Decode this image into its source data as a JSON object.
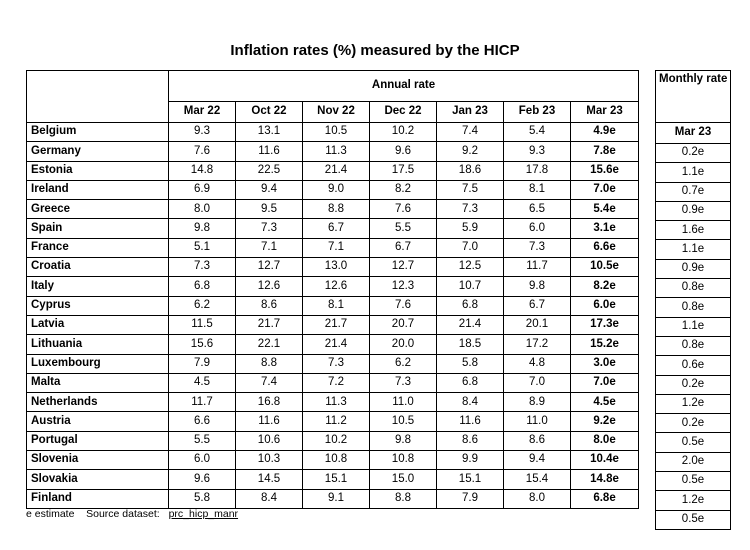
{
  "title": "Inflation rates (%) measured by the HICP",
  "annual_header": "Annual rate",
  "monthly_header": "Monthly rate",
  "months": [
    "Mar 22",
    "Oct 22",
    "Nov 22",
    "Dec 22",
    "Jan 23",
    "Feb 23",
    "Mar 23"
  ],
  "monthly_month": "Mar 23",
  "rows": [
    {
      "country": "Belgium",
      "values": [
        "9.3",
        "13.1",
        "10.5",
        "10.2",
        "7.4",
        "5.4",
        "4.9e"
      ],
      "monthly": "0.2e"
    },
    {
      "country": "Germany",
      "values": [
        "7.6",
        "11.6",
        "11.3",
        "9.6",
        "9.2",
        "9.3",
        "7.8e"
      ],
      "monthly": "1.1e"
    },
    {
      "country": "Estonia",
      "values": [
        "14.8",
        "22.5",
        "21.4",
        "17.5",
        "18.6",
        "17.8",
        "15.6e"
      ],
      "monthly": "0.7e"
    },
    {
      "country": "Ireland",
      "values": [
        "6.9",
        "9.4",
        "9.0",
        "8.2",
        "7.5",
        "8.1",
        "7.0e"
      ],
      "monthly": "0.9e"
    },
    {
      "country": "Greece",
      "values": [
        "8.0",
        "9.5",
        "8.8",
        "7.6",
        "7.3",
        "6.5",
        "5.4e"
      ],
      "monthly": "1.6e"
    },
    {
      "country": "Spain",
      "values": [
        "9.8",
        "7.3",
        "6.7",
        "5.5",
        "5.9",
        "6.0",
        "3.1e"
      ],
      "monthly": "1.1e"
    },
    {
      "country": "France",
      "values": [
        "5.1",
        "7.1",
        "7.1",
        "6.7",
        "7.0",
        "7.3",
        "6.6e"
      ],
      "monthly": "0.9e"
    },
    {
      "country": "Croatia",
      "values": [
        "7.3",
        "12.7",
        "13.0",
        "12.7",
        "12.5",
        "11.7",
        "10.5e"
      ],
      "monthly": "0.8e"
    },
    {
      "country": "Italy",
      "values": [
        "6.8",
        "12.6",
        "12.6",
        "12.3",
        "10.7",
        "9.8",
        "8.2e"
      ],
      "monthly": "0.8e"
    },
    {
      "country": "Cyprus",
      "values": [
        "6.2",
        "8.6",
        "8.1",
        "7.6",
        "6.8",
        "6.7",
        "6.0e"
      ],
      "monthly": "1.1e"
    },
    {
      "country": "Latvia",
      "values": [
        "11.5",
        "21.7",
        "21.7",
        "20.7",
        "21.4",
        "20.1",
        "17.3e"
      ],
      "monthly": "0.8e"
    },
    {
      "country": "Lithuania",
      "values": [
        "15.6",
        "22.1",
        "21.4",
        "20.0",
        "18.5",
        "17.2",
        "15.2e"
      ],
      "monthly": "0.6e"
    },
    {
      "country": "Luxembourg",
      "values": [
        "7.9",
        "8.8",
        "7.3",
        "6.2",
        "5.8",
        "4.8",
        "3.0e"
      ],
      "monthly": "0.2e"
    },
    {
      "country": "Malta",
      "values": [
        "4.5",
        "7.4",
        "7.2",
        "7.3",
        "6.8",
        "7.0",
        "7.0e"
      ],
      "monthly": "1.2e"
    },
    {
      "country": "Netherlands",
      "values": [
        "11.7",
        "16.8",
        "11.3",
        "11.0",
        "8.4",
        "8.9",
        "4.5e"
      ],
      "monthly": "0.2e"
    },
    {
      "country": "Austria",
      "values": [
        "6.6",
        "11.6",
        "11.2",
        "10.5",
        "11.6",
        "11.0",
        "9.2e"
      ],
      "monthly": "0.5e"
    },
    {
      "country": "Portugal",
      "values": [
        "5.5",
        "10.6",
        "10.2",
        "9.8",
        "8.6",
        "8.6",
        "8.0e"
      ],
      "monthly": "2.0e"
    },
    {
      "country": "Slovenia",
      "values": [
        "6.0",
        "10.3",
        "10.8",
        "10.8",
        "9.9",
        "9.4",
        "10.4e"
      ],
      "monthly": "0.5e"
    },
    {
      "country": "Slovakia",
      "values": [
        "9.6",
        "14.5",
        "15.1",
        "15.0",
        "15.1",
        "15.4",
        "14.8e"
      ],
      "monthly": "1.2e"
    },
    {
      "country": "Finland",
      "values": [
        "5.8",
        "8.4",
        "9.1",
        "8.8",
        "7.9",
        "8.0",
        "6.8e"
      ],
      "monthly": "0.5e"
    }
  ],
  "footer": {
    "note": "e estimate",
    "source_label": "Source dataset:",
    "source_name": "prc_hicp_manr"
  }
}
